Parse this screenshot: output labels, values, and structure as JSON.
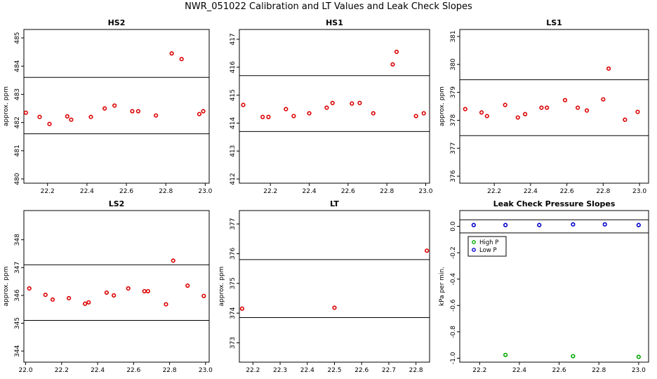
{
  "figure_title": "NWR_051022  Calibration and LT Values and Leak Check Slopes",
  "chart_data": [
    {
      "type": "scatter",
      "title": "HS2",
      "xlabel": "",
      "ylabel": "approx. ppm",
      "xlim": [
        22.08,
        23.02
      ],
      "ylim": [
        479.85,
        485.3
      ],
      "xticks": [
        22.2,
        22.4,
        22.6,
        22.8,
        23.0
      ],
      "xtick_labels": [
        "22.2",
        "22.4",
        "22.6",
        "22.8",
        "23.0"
      ],
      "yticks": [
        480,
        481,
        482,
        483,
        484,
        485
      ],
      "ytick_labels": [
        "480",
        "481",
        "482",
        "483",
        "484",
        "485"
      ],
      "hlines": [
        481.6,
        483.6
      ],
      "series": [
        {
          "color": "#dd0000",
          "points": [
            [
              22.09,
              482.35
            ],
            [
              22.16,
              482.2
            ],
            [
              22.21,
              481.95
            ],
            [
              22.3,
              482.22
            ],
            [
              22.32,
              482.1
            ],
            [
              22.42,
              482.2
            ],
            [
              22.49,
              482.5
            ],
            [
              22.54,
              482.6
            ],
            [
              22.63,
              482.4
            ],
            [
              22.66,
              482.4
            ],
            [
              22.75,
              482.25
            ],
            [
              22.83,
              484.45
            ],
            [
              22.88,
              484.25
            ],
            [
              22.97,
              482.3
            ],
            [
              22.99,
              482.4
            ]
          ]
        }
      ]
    },
    {
      "type": "scatter",
      "title": "HS1",
      "xlabel": "",
      "ylabel": "",
      "xlim": [
        22.04,
        23.02
      ],
      "ylim": [
        411.85,
        417.35
      ],
      "xticks": [
        22.2,
        22.4,
        22.6,
        22.8,
        23.0
      ],
      "xtick_labels": [
        "22.2",
        "22.4",
        "22.6",
        "22.8",
        "23.0"
      ],
      "yticks": [
        412,
        413,
        414,
        415,
        416,
        417
      ],
      "ytick_labels": [
        "412",
        "413",
        "414",
        "415",
        "416",
        "417"
      ],
      "hlines": [
        413.7,
        415.7
      ],
      "series": [
        {
          "color": "#dd0000",
          "points": [
            [
              22.06,
              414.65
            ],
            [
              22.16,
              414.22
            ],
            [
              22.19,
              414.22
            ],
            [
              22.28,
              414.5
            ],
            [
              22.32,
              414.25
            ],
            [
              22.4,
              414.35
            ],
            [
              22.49,
              414.55
            ],
            [
              22.52,
              414.72
            ],
            [
              22.62,
              414.7
            ],
            [
              22.66,
              414.72
            ],
            [
              22.73,
              414.35
            ],
            [
              22.83,
              416.1
            ],
            [
              22.85,
              416.55
            ],
            [
              22.95,
              414.25
            ],
            [
              22.99,
              414.35
            ]
          ]
        }
      ]
    },
    {
      "type": "scatter",
      "title": "LS1",
      "xlabel": "",
      "ylabel": "approx. ppm",
      "xlim": [
        22.01,
        23.05
      ],
      "ylim": [
        375.75,
        381.25
      ],
      "xticks": [
        22.2,
        22.4,
        22.6,
        22.8,
        23.0
      ],
      "xtick_labels": [
        "22.2",
        "22.4",
        "22.6",
        "22.8",
        "23.0"
      ],
      "yticks": [
        376,
        377,
        378,
        379,
        380,
        381
      ],
      "ytick_labels": [
        "376",
        "377",
        "378",
        "379",
        "380",
        "381"
      ],
      "hlines": [
        377.45,
        379.45
      ],
      "series": [
        {
          "color": "#dd0000",
          "points": [
            [
              22.04,
              378.4
            ],
            [
              22.13,
              378.28
            ],
            [
              22.16,
              378.15
            ],
            [
              22.26,
              378.55
            ],
            [
              22.33,
              378.1
            ],
            [
              22.37,
              378.22
            ],
            [
              22.46,
              378.45
            ],
            [
              22.49,
              378.45
            ],
            [
              22.59,
              378.72
            ],
            [
              22.66,
              378.45
            ],
            [
              22.71,
              378.35
            ],
            [
              22.8,
              378.75
            ],
            [
              22.83,
              379.85
            ],
            [
              22.92,
              378.02
            ],
            [
              22.99,
              378.3
            ]
          ]
        }
      ]
    },
    {
      "type": "scatter",
      "title": "LS2",
      "xlabel": "",
      "ylabel": "approx. ppm",
      "xlim": [
        21.99,
        23.02
      ],
      "ylim": [
        343.6,
        349.05
      ],
      "xticks": [
        22.0,
        22.2,
        22.4,
        22.6,
        22.8,
        23.0
      ],
      "xtick_labels": [
        "22.0",
        "22.2",
        "22.4",
        "22.6",
        "22.8",
        "23.0"
      ],
      "yticks": [
        344,
        345,
        346,
        347,
        348
      ],
      "ytick_labels": [
        "344",
        "345",
        "346",
        "347",
        "348"
      ],
      "hlines": [
        345.1,
        347.1
      ],
      "series": [
        {
          "color": "#dd0000",
          "points": [
            [
              22.02,
              346.25
            ],
            [
              22.11,
              346.02
            ],
            [
              22.15,
              345.85
            ],
            [
              22.24,
              345.9
            ],
            [
              22.33,
              345.7
            ],
            [
              22.35,
              345.75
            ],
            [
              22.45,
              346.1
            ],
            [
              22.49,
              346.0
            ],
            [
              22.57,
              346.25
            ],
            [
              22.66,
              346.15
            ],
            [
              22.68,
              346.15
            ],
            [
              22.78,
              345.68
            ],
            [
              22.82,
              347.25
            ],
            [
              22.9,
              346.35
            ],
            [
              22.99,
              345.98
            ]
          ]
        }
      ]
    },
    {
      "type": "scatter",
      "title": "LT",
      "xlabel": "",
      "ylabel": "approx. ppm",
      "xlim": [
        22.15,
        22.85
      ],
      "ylim": [
        372.35,
        377.45
      ],
      "xticks": [
        22.2,
        22.3,
        22.4,
        22.5,
        22.6,
        22.7,
        22.8
      ],
      "xtick_labels": [
        "22.2",
        "22.3",
        "22.4",
        "22.5",
        "22.6",
        "22.7",
        "22.8"
      ],
      "yticks": [
        373,
        374,
        375,
        376,
        377
      ],
      "ytick_labels": [
        "373",
        "374",
        "375",
        "376",
        "377"
      ],
      "hlines": [
        373.85,
        375.8
      ],
      "series": [
        {
          "color": "#dd0000",
          "points": [
            [
              22.16,
              374.15
            ],
            [
              22.5,
              374.18
            ],
            [
              22.84,
              376.1
            ]
          ]
        }
      ]
    },
    {
      "type": "scatter",
      "title": "Leak Check Pressure Slopes",
      "xlabel": "",
      "ylabel": "kPa per min.",
      "xlim": [
        22.1,
        23.05
      ],
      "ylim": [
        -1.03,
        0.12
      ],
      "xticks": [
        22.2,
        22.4,
        22.6,
        22.8,
        23.0
      ],
      "xtick_labels": [
        "22.2",
        "22.4",
        "22.6",
        "22.8",
        "23.0"
      ],
      "yticks": [
        0.0,
        -0.2,
        -0.4,
        -0.6,
        -0.8,
        -1.0
      ],
      "ytick_labels": [
        "0.0",
        "-0.2",
        "-0.4",
        "-0.6",
        "-0.8",
        "-1.0"
      ],
      "hlines": [
        0.05,
        -0.05
      ],
      "legend": {
        "position": "top-left",
        "entries": [
          {
            "label": "High P",
            "color": "#00aa00"
          },
          {
            "label": "Low P",
            "color": "#0000cc"
          }
        ]
      },
      "series": [
        {
          "name": "High P",
          "color": "#00aa00",
          "points": [
            [
              22.33,
              -0.975
            ],
            [
              22.67,
              -0.985
            ],
            [
              23.0,
              -0.99
            ]
          ]
        },
        {
          "name": "Low P",
          "color": "#0000cc",
          "points": [
            [
              22.17,
              0.01
            ],
            [
              22.33,
              0.01
            ],
            [
              22.5,
              0.01
            ],
            [
              22.67,
              0.015
            ],
            [
              22.83,
              0.015
            ],
            [
              23.0,
              0.01
            ]
          ]
        }
      ]
    }
  ]
}
